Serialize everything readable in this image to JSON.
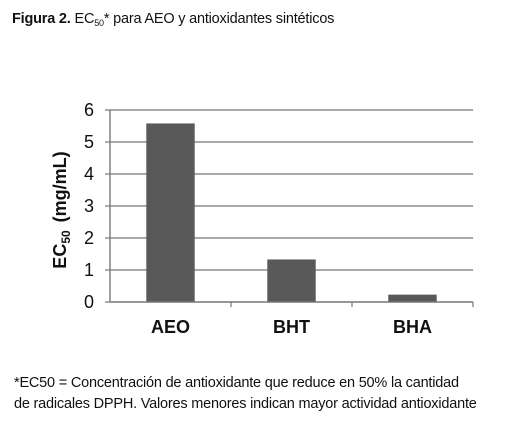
{
  "caption": {
    "figure_label": "Figura 2.",
    "ec": "EC",
    "ec_sub": "50",
    "rest": "* para  AEO y antioxidantes sintéticos"
  },
  "chart_data": {
    "type": "bar",
    "categories": [
      "AEO",
      "BHT",
      "BHA"
    ],
    "values": [
      5.58,
      1.33,
      0.23
    ],
    "ylim": [
      0,
      6
    ],
    "yticks": [
      "0",
      "1",
      "2",
      "3",
      "4",
      "5",
      "6"
    ],
    "ylabel_main": "EC",
    "ylabel_sub": "50",
    "ylabel_unit": "(mg/mL)",
    "xlabel": "",
    "grid": true,
    "legend": "none",
    "bar_color": "#595959",
    "grid_color": "#8c8c8c"
  },
  "note": {
    "line1": "*EC50 = Concentración de antioxidante que reduce en 50% la cantidad",
    "line2": "de radicales DPPH. Valores menores indican mayor actividad antioxidante"
  }
}
